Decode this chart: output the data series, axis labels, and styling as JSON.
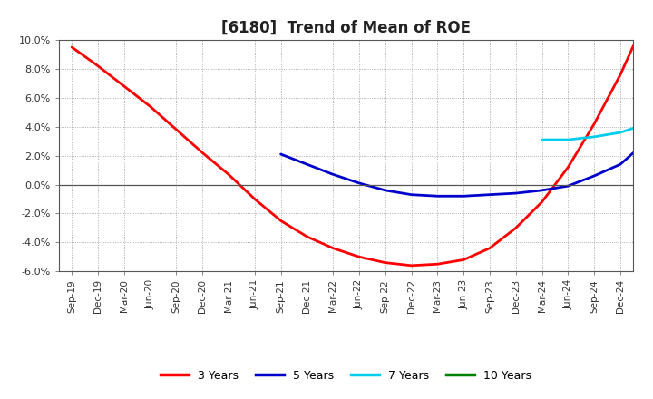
{
  "title": "[6180]  Trend of Mean of ROE",
  "ylim": [
    -0.06,
    0.1
  ],
  "yticks": [
    -0.06,
    -0.04,
    -0.02,
    0.0,
    0.02,
    0.04,
    0.06,
    0.08,
    0.1
  ],
  "background_color": "#ffffff",
  "grid_color": "#999999",
  "series": {
    "3years": {
      "color": "#ff0000",
      "label": "3 Years",
      "points": [
        [
          0,
          0.095
        ],
        [
          1,
          0.082
        ],
        [
          2,
          0.068
        ],
        [
          3,
          0.054
        ],
        [
          4,
          0.038
        ],
        [
          5,
          0.022
        ],
        [
          6,
          0.007
        ],
        [
          7,
          -0.01
        ],
        [
          8,
          -0.025
        ],
        [
          9,
          -0.036
        ],
        [
          10,
          -0.044
        ],
        [
          11,
          -0.05
        ],
        [
          12,
          -0.054
        ],
        [
          13,
          -0.056
        ],
        [
          14,
          -0.055
        ],
        [
          15,
          -0.052
        ],
        [
          16,
          -0.044
        ],
        [
          17,
          -0.03
        ],
        [
          18,
          -0.012
        ],
        [
          19,
          0.012
        ],
        [
          20,
          0.042
        ],
        [
          21,
          0.076
        ],
        [
          21.5,
          0.096
        ]
      ]
    },
    "5years": {
      "color": "#0000cc",
      "label": "5 Years",
      "points": [
        [
          8,
          0.021
        ],
        [
          9,
          0.014
        ],
        [
          10,
          0.007
        ],
        [
          11,
          0.001
        ],
        [
          12,
          -0.004
        ],
        [
          13,
          -0.007
        ],
        [
          14,
          -0.008
        ],
        [
          15,
          -0.008
        ],
        [
          16,
          -0.007
        ],
        [
          17,
          -0.006
        ],
        [
          18,
          -0.004
        ],
        [
          19,
          -0.001
        ],
        [
          20,
          0.006
        ],
        [
          21,
          0.014
        ],
        [
          21.5,
          0.022
        ]
      ]
    },
    "7years": {
      "color": "#00ccee",
      "label": "7 Years",
      "points": [
        [
          18,
          0.031
        ],
        [
          19,
          0.031
        ],
        [
          20,
          0.033
        ],
        [
          21,
          0.036
        ],
        [
          21.5,
          0.039
        ]
      ]
    },
    "10years": {
      "color": "#008000",
      "label": "10 Years",
      "points": []
    }
  },
  "xtick_labels": [
    "Sep-19",
    "Dec-19",
    "Mar-20",
    "Jun-20",
    "Sep-20",
    "Dec-20",
    "Mar-21",
    "Jun-21",
    "Sep-21",
    "Dec-21",
    "Mar-22",
    "Jun-22",
    "Sep-22",
    "Dec-22",
    "Mar-23",
    "Jun-23",
    "Sep-23",
    "Dec-23",
    "Mar-24",
    "Jun-24",
    "Sep-24",
    "Dec-24"
  ]
}
